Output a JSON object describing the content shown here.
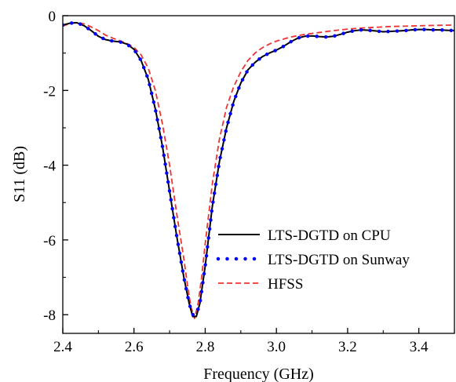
{
  "chart_data": {
    "type": "line",
    "xlabel": "Frequency (GHz)",
    "ylabel": "S11 (dB)",
    "xlim": [
      2.4,
      3.5
    ],
    "ylim": [
      -8.5,
      0
    ],
    "xticks": [
      "2.4",
      "2.6",
      "2.8",
      "3.0",
      "3.2",
      "3.4"
    ],
    "yticks": [
      "0",
      "-2",
      "-4",
      "-6",
      "-8"
    ],
    "grid": false,
    "legend_position": "lower-right",
    "series": [
      {
        "name": "LTS-DGTD on CPU",
        "color": "#000000",
        "style": "solid",
        "points": [
          [
            2.4,
            -0.25
          ],
          [
            2.42,
            -0.2
          ],
          [
            2.44,
            -0.19
          ],
          [
            2.46,
            -0.27
          ],
          [
            2.48,
            -0.4
          ],
          [
            2.5,
            -0.55
          ],
          [
            2.52,
            -0.64
          ],
          [
            2.54,
            -0.68
          ],
          [
            2.56,
            -0.7
          ],
          [
            2.58,
            -0.76
          ],
          [
            2.6,
            -0.9
          ],
          [
            2.62,
            -1.2
          ],
          [
            2.64,
            -1.7
          ],
          [
            2.66,
            -2.5
          ],
          [
            2.68,
            -3.5
          ],
          [
            2.7,
            -4.7
          ],
          [
            2.72,
            -5.9
          ],
          [
            2.74,
            -7.0
          ],
          [
            2.755,
            -7.7
          ],
          [
            2.765,
            -8.05
          ],
          [
            2.775,
            -8.05
          ],
          [
            2.785,
            -7.7
          ],
          [
            2.8,
            -6.7
          ],
          [
            2.82,
            -5.1
          ],
          [
            2.84,
            -3.9
          ],
          [
            2.86,
            -3.0
          ],
          [
            2.88,
            -2.3
          ],
          [
            2.9,
            -1.8
          ],
          [
            2.92,
            -1.45
          ],
          [
            2.94,
            -1.25
          ],
          [
            2.96,
            -1.1
          ],
          [
            2.98,
            -1.0
          ],
          [
            3.0,
            -0.92
          ],
          [
            3.02,
            -0.82
          ],
          [
            3.04,
            -0.7
          ],
          [
            3.06,
            -0.6
          ],
          [
            3.08,
            -0.55
          ],
          [
            3.1,
            -0.54
          ],
          [
            3.12,
            -0.56
          ],
          [
            3.14,
            -0.57
          ],
          [
            3.16,
            -0.55
          ],
          [
            3.18,
            -0.5
          ],
          [
            3.2,
            -0.44
          ],
          [
            3.22,
            -0.4
          ],
          [
            3.24,
            -0.38
          ],
          [
            3.26,
            -0.39
          ],
          [
            3.28,
            -0.41
          ],
          [
            3.3,
            -0.43
          ],
          [
            3.32,
            -0.42
          ],
          [
            3.34,
            -0.41
          ],
          [
            3.36,
            -0.4
          ],
          [
            3.38,
            -0.38
          ],
          [
            3.4,
            -0.37
          ],
          [
            3.42,
            -0.37
          ],
          [
            3.44,
            -0.38
          ],
          [
            3.46,
            -0.38
          ],
          [
            3.48,
            -0.39
          ],
          [
            3.5,
            -0.4
          ]
        ]
      },
      {
        "name": "LTS-DGTD on Sunway",
        "color": "#0000ff",
        "style": "dotted",
        "points": [
          [
            2.4,
            -0.25
          ],
          [
            2.42,
            -0.2
          ],
          [
            2.44,
            -0.19
          ],
          [
            2.46,
            -0.27
          ],
          [
            2.48,
            -0.4
          ],
          [
            2.5,
            -0.55
          ],
          [
            2.52,
            -0.64
          ],
          [
            2.54,
            -0.68
          ],
          [
            2.56,
            -0.7
          ],
          [
            2.58,
            -0.76
          ],
          [
            2.6,
            -0.9
          ],
          [
            2.62,
            -1.2
          ],
          [
            2.64,
            -1.7
          ],
          [
            2.66,
            -2.5
          ],
          [
            2.68,
            -3.5
          ],
          [
            2.7,
            -4.7
          ],
          [
            2.72,
            -5.9
          ],
          [
            2.74,
            -7.0
          ],
          [
            2.755,
            -7.7
          ],
          [
            2.765,
            -8.0
          ],
          [
            2.775,
            -8.0
          ],
          [
            2.785,
            -7.7
          ],
          [
            2.8,
            -6.7
          ],
          [
            2.82,
            -5.1
          ],
          [
            2.84,
            -3.9
          ],
          [
            2.86,
            -3.0
          ],
          [
            2.88,
            -2.3
          ],
          [
            2.9,
            -1.8
          ],
          [
            2.92,
            -1.45
          ],
          [
            2.94,
            -1.25
          ],
          [
            2.96,
            -1.1
          ],
          [
            2.98,
            -1.0
          ],
          [
            3.0,
            -0.92
          ],
          [
            3.02,
            -0.82
          ],
          [
            3.04,
            -0.7
          ],
          [
            3.06,
            -0.6
          ],
          [
            3.08,
            -0.55
          ],
          [
            3.1,
            -0.54
          ],
          [
            3.12,
            -0.56
          ],
          [
            3.14,
            -0.57
          ],
          [
            3.16,
            -0.55
          ],
          [
            3.18,
            -0.5
          ],
          [
            3.2,
            -0.44
          ],
          [
            3.22,
            -0.4
          ],
          [
            3.24,
            -0.38
          ],
          [
            3.26,
            -0.39
          ],
          [
            3.28,
            -0.41
          ],
          [
            3.3,
            -0.43
          ],
          [
            3.32,
            -0.42
          ],
          [
            3.34,
            -0.41
          ],
          [
            3.36,
            -0.4
          ],
          [
            3.38,
            -0.38
          ],
          [
            3.4,
            -0.37
          ],
          [
            3.42,
            -0.37
          ],
          [
            3.44,
            -0.38
          ],
          [
            3.46,
            -0.38
          ],
          [
            3.48,
            -0.39
          ],
          [
            3.5,
            -0.4
          ]
        ]
      },
      {
        "name": "HFSS",
        "color": "#ee3333",
        "style": "dashed",
        "points": [
          [
            2.4,
            -0.28
          ],
          [
            2.42,
            -0.21
          ],
          [
            2.44,
            -0.18
          ],
          [
            2.46,
            -0.22
          ],
          [
            2.48,
            -0.3
          ],
          [
            2.5,
            -0.4
          ],
          [
            2.52,
            -0.52
          ],
          [
            2.54,
            -0.6
          ],
          [
            2.56,
            -0.67
          ],
          [
            2.58,
            -0.74
          ],
          [
            2.6,
            -0.85
          ],
          [
            2.62,
            -1.05
          ],
          [
            2.64,
            -1.4
          ],
          [
            2.66,
            -2.0
          ],
          [
            2.68,
            -2.9
          ],
          [
            2.7,
            -4.0
          ],
          [
            2.72,
            -5.3
          ],
          [
            2.74,
            -6.5
          ],
          [
            2.75,
            -7.2
          ],
          [
            2.76,
            -7.8
          ],
          [
            2.77,
            -8.1
          ],
          [
            2.78,
            -7.7
          ],
          [
            2.79,
            -7.0
          ],
          [
            2.8,
            -6.1
          ],
          [
            2.82,
            -4.5
          ],
          [
            2.84,
            -3.3
          ],
          [
            2.86,
            -2.45
          ],
          [
            2.88,
            -1.9
          ],
          [
            2.9,
            -1.5
          ],
          [
            2.92,
            -1.2
          ],
          [
            2.94,
            -1.0
          ],
          [
            2.96,
            -0.86
          ],
          [
            2.98,
            -0.76
          ],
          [
            3.0,
            -0.68
          ],
          [
            3.04,
            -0.57
          ],
          [
            3.08,
            -0.5
          ],
          [
            3.12,
            -0.45
          ],
          [
            3.16,
            -0.4
          ],
          [
            3.2,
            -0.36
          ],
          [
            3.24,
            -0.33
          ],
          [
            3.28,
            -0.31
          ],
          [
            3.32,
            -0.29
          ],
          [
            3.36,
            -0.28
          ],
          [
            3.4,
            -0.27
          ],
          [
            3.44,
            -0.26
          ],
          [
            3.5,
            -0.25
          ]
        ]
      }
    ]
  }
}
